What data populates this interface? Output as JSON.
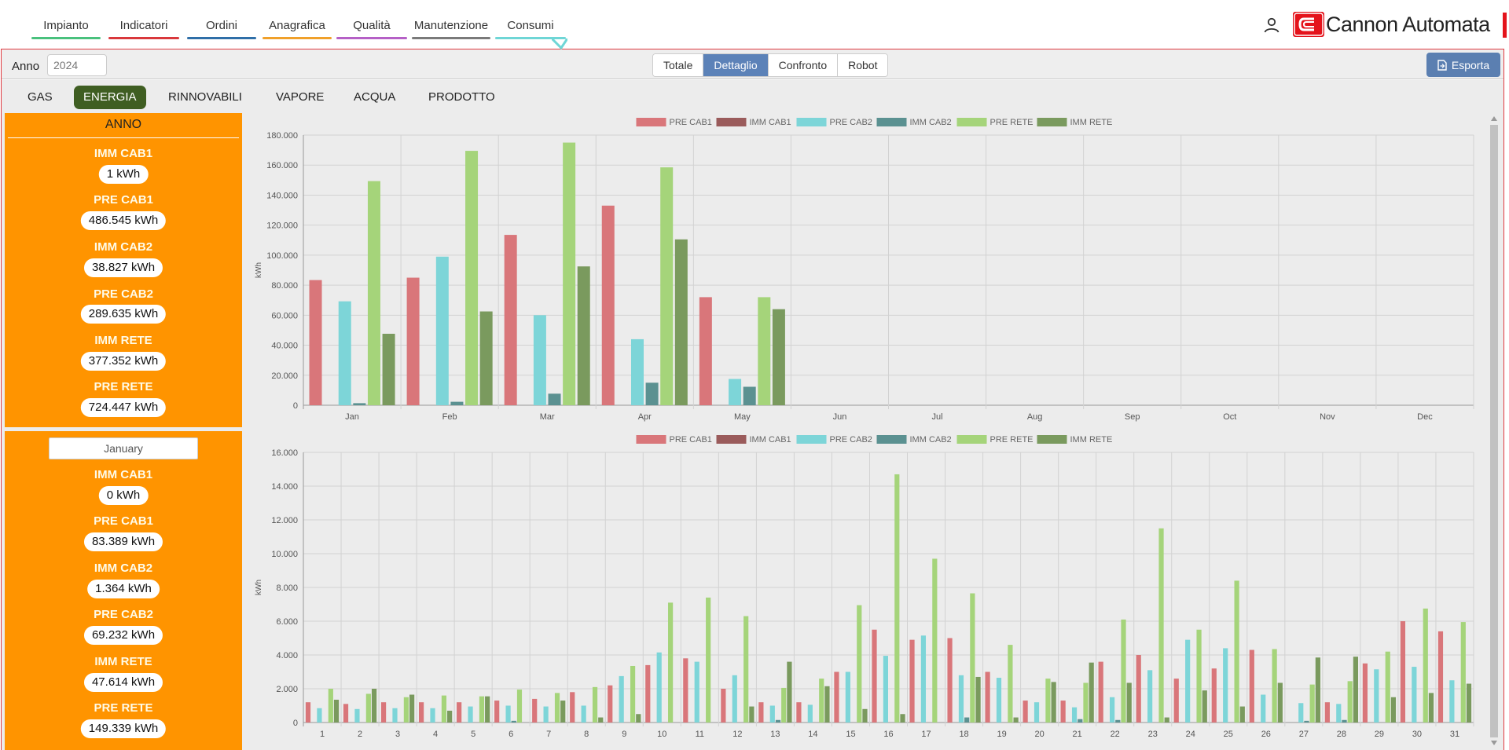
{
  "nav": {
    "items": [
      {
        "label": "Impianto",
        "color": "#49c17d"
      },
      {
        "label": "Indicatori",
        "color": "#d9383c"
      },
      {
        "label": "Ordini",
        "color": "#2f6fa8"
      },
      {
        "label": "Anagrafica",
        "color": "#f0a02a"
      },
      {
        "label": "Qualità",
        "color": "#b560c6"
      },
      {
        "label": "Manutenzione",
        "color": "#7a7a7a"
      },
      {
        "label": "Consumi",
        "color": "#6fd6d6"
      }
    ],
    "active": "Consumi",
    "user_icon": "user-icon",
    "brand": "Cannon Automata",
    "brand_color": "#e4131b"
  },
  "toolbar": {
    "anno_label": "Anno",
    "anno_value": "2024",
    "views": [
      "Totale",
      "Dettaglio",
      "Confronto",
      "Robot"
    ],
    "active_view": "Dettaglio",
    "export_label": "Esporta",
    "export_icon": "file-export-icon",
    "accent": "#5b7fb1"
  },
  "categories": {
    "items": [
      "GAS",
      "ENERGIA",
      "RINNOVABILI",
      "VAPORE",
      "ACQUA",
      "PRODOTTO"
    ],
    "active": "ENERGIA",
    "active_color": "#3f5e22"
  },
  "year_panel": {
    "title": "ANNO",
    "unit": "kWh",
    "items": [
      {
        "label": "IMM CAB1",
        "value": "1"
      },
      {
        "label": "PRE CAB1",
        "value": "486.545"
      },
      {
        "label": "IMM CAB2",
        "value": "38.827"
      },
      {
        "label": "PRE CAB2",
        "value": "289.635"
      },
      {
        "label": "IMM RETE",
        "value": "377.352"
      },
      {
        "label": "PRE RETE",
        "value": "724.447"
      }
    ]
  },
  "month_panel": {
    "month": "January",
    "unit": "kWh",
    "items": [
      {
        "label": "IMM CAB1",
        "value": "0"
      },
      {
        "label": "PRE CAB1",
        "value": "83.389"
      },
      {
        "label": "IMM CAB2",
        "value": "1.364"
      },
      {
        "label": "PRE CAB2",
        "value": "69.232"
      },
      {
        "label": "IMM RETE",
        "value": "47.614"
      },
      {
        "label": "PRE RETE",
        "value": "149.339"
      }
    ]
  },
  "chart_data": [
    {
      "type": "bar",
      "ylabel": "kWh",
      "ylim": [
        0,
        180000
      ],
      "yticks": [
        0,
        20000,
        40000,
        60000,
        80000,
        100000,
        120000,
        140000,
        160000,
        180000
      ],
      "ytick_labels": [
        "0",
        "20.000",
        "40.000",
        "60.000",
        "80.000",
        "100.000",
        "120.000",
        "140.000",
        "160.000",
        "180.000"
      ],
      "grid": true,
      "legend_position": "top-center",
      "categories": [
        "Jan",
        "Feb",
        "Mar",
        "Apr",
        "May",
        "Jun",
        "Jul",
        "Aug",
        "Sep",
        "Oct",
        "Nov",
        "Dec"
      ],
      "series": [
        {
          "name": "PRE CAB1",
          "color": "#d9767a",
          "values": [
            83389,
            85000,
            113500,
            133000,
            72000,
            0,
            0,
            0,
            0,
            0,
            0,
            0
          ]
        },
        {
          "name": "IMM CAB1",
          "color": "#9a5b5b",
          "values": [
            0,
            0,
            0,
            0,
            1,
            0,
            0,
            0,
            0,
            0,
            0,
            0
          ]
        },
        {
          "name": "PRE CAB2",
          "color": "#7dd5d8",
          "values": [
            69232,
            99000,
            60000,
            44000,
            17500,
            0,
            0,
            0,
            0,
            0,
            0,
            0
          ]
        },
        {
          "name": "IMM CAB2",
          "color": "#5b9191",
          "values": [
            1364,
            2300,
            7700,
            15000,
            12300,
            0,
            0,
            0,
            0,
            0,
            0,
            0
          ]
        },
        {
          "name": "PRE RETE",
          "color": "#a5d47a",
          "values": [
            149339,
            169500,
            175000,
            158500,
            72000,
            0,
            0,
            0,
            0,
            0,
            0,
            0
          ]
        },
        {
          "name": "IMM RETE",
          "color": "#7a9a5e",
          "values": [
            47614,
            62500,
            92500,
            110500,
            64000,
            0,
            0,
            0,
            0,
            0,
            0,
            0
          ]
        }
      ]
    },
    {
      "type": "bar",
      "ylabel": "kWh",
      "ylim": [
        0,
        16000
      ],
      "yticks": [
        0,
        2000,
        4000,
        6000,
        8000,
        10000,
        12000,
        14000,
        16000
      ],
      "ytick_labels": [
        "0",
        "2.000",
        "4.000",
        "6.000",
        "8.000",
        "10.000",
        "12.000",
        "14.000",
        "16.000"
      ],
      "grid": true,
      "legend_position": "top-center",
      "categories": [
        "1",
        "2",
        "3",
        "4",
        "5",
        "6",
        "7",
        "8",
        "9",
        "10",
        "11",
        "12",
        "13",
        "14",
        "15",
        "16",
        "17",
        "18",
        "19",
        "20",
        "21",
        "22",
        "23",
        "24",
        "25",
        "26",
        "27",
        "28",
        "29",
        "30",
        "31"
      ],
      "series": [
        {
          "name": "PRE CAB1",
          "color": "#d9767a",
          "values": [
            1200,
            1100,
            1200,
            1200,
            1200,
            1300,
            1400,
            1800,
            2200,
            3400,
            3800,
            2000,
            1200,
            1200,
            3000,
            5500,
            4900,
            5000,
            3000,
            1300,
            1300,
            3600,
            4000,
            2600,
            3200,
            4300,
            0,
            1200,
            3500,
            6000,
            5400
          ]
        },
        {
          "name": "IMM CAB1",
          "color": "#9a5b5b",
          "values": [
            0,
            0,
            0,
            0,
            0,
            0,
            0,
            0,
            0,
            0,
            0,
            0,
            0,
            0,
            0,
            0,
            0,
            0,
            0,
            0,
            0,
            0,
            0,
            0,
            0,
            0,
            0,
            0,
            0,
            0,
            0
          ]
        },
        {
          "name": "PRE CAB2",
          "color": "#7dd5d8",
          "values": [
            850,
            800,
            850,
            850,
            950,
            1000,
            950,
            1000,
            2750,
            4150,
            3600,
            2800,
            1000,
            1050,
            3000,
            3950,
            5150,
            2800,
            2650,
            1200,
            900,
            1500,
            3100,
            4900,
            4400,
            1650,
            1150,
            1100,
            3150,
            3300,
            2500
          ]
        },
        {
          "name": "IMM CAB2",
          "color": "#5b9191",
          "values": [
            0,
            0,
            0,
            0,
            0,
            100,
            0,
            0,
            0,
            0,
            0,
            0,
            150,
            0,
            0,
            0,
            0,
            300,
            0,
            0,
            200,
            150,
            0,
            0,
            0,
            0,
            100,
            150,
            0,
            0,
            0
          ]
        },
        {
          "name": "PRE RETE",
          "color": "#a5d47a",
          "values": [
            2000,
            1700,
            1500,
            1600,
            1550,
            1950,
            1750,
            2100,
            3350,
            7100,
            7400,
            6300,
            2050,
            2600,
            6950,
            14700,
            9700,
            7650,
            4600,
            2600,
            2350,
            6100,
            11500,
            5500,
            8400,
            4350,
            2250,
            2450,
            4200,
            6750,
            5950
          ]
        },
        {
          "name": "IMM RETE",
          "color": "#7a9a5e",
          "values": [
            1350,
            2000,
            1650,
            700,
            1550,
            0,
            1300,
            300,
            500,
            0,
            0,
            950,
            3600,
            2150,
            800,
            500,
            0,
            2700,
            300,
            2400,
            3550,
            2350,
            300,
            1900,
            950,
            2350,
            3850,
            3900,
            1500,
            1750,
            2300
          ]
        }
      ]
    }
  ]
}
